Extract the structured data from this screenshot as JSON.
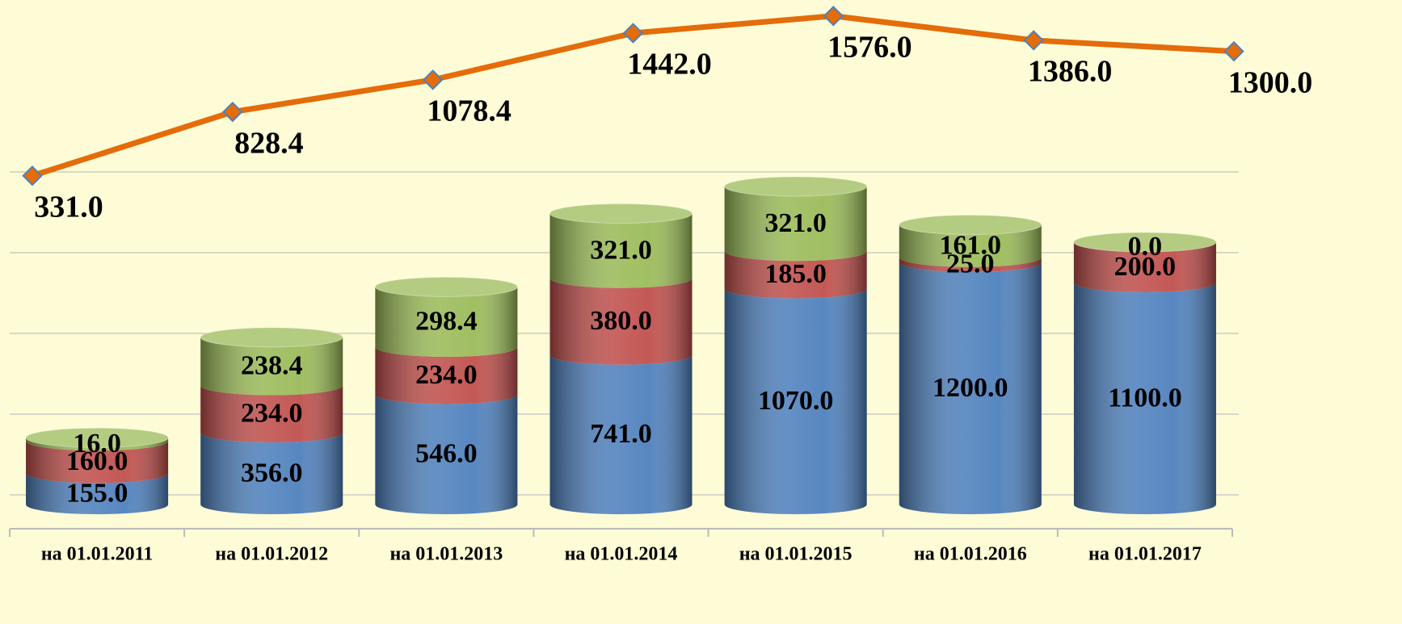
{
  "chart_data": {
    "type": "bar",
    "stacked": true,
    "categories": [
      "на 01.01.2011",
      "на 01.01.2012",
      "на 01.01.2013",
      "на 01.01.2014",
      "на 01.01.2015",
      "на 01.01.2016",
      "на 01.01.2017"
    ],
    "series": [
      {
        "color": "#4f81bd",
        "values": [
          155,
          356,
          546,
          741,
          1070,
          1200,
          1100
        ],
        "value_labels": [
          "155.0",
          "356.0",
          "546.0",
          "741.0",
          "1070.0",
          "1200.0",
          "1100.0"
        ]
      },
      {
        "color": "#c0504d",
        "values": [
          160,
          234,
          234,
          380,
          185,
          25,
          200
        ],
        "value_labels": [
          "160.0",
          "234.0",
          "234.0",
          "380.0",
          "185.0",
          "25.0",
          "200.0"
        ]
      },
      {
        "color": "#9bbb59",
        "values": [
          16,
          238.4,
          298.4,
          321,
          321,
          161,
          0
        ],
        "value_labels": [
          "16.0",
          "238.4",
          "298.4",
          "321.0",
          "321.0",
          "161.0",
          "0.0"
        ]
      },
      {
        "type": "line",
        "axis": "y2",
        "color": "#e46c0a",
        "marker_color": "#e46c0a",
        "marker_edge": "#4f81bd",
        "values": [
          331,
          828.4,
          1078.4,
          1442,
          1576,
          1386,
          1300
        ],
        "value_labels": [
          "331.0",
          "828.4",
          "1078.4",
          "1442.0",
          "1576.0",
          "1386.0",
          "1300.0"
        ]
      }
    ],
    "ylim": [
      0,
      2500
    ],
    "yticks": [
      0,
      400,
      800,
      1200,
      1600
    ],
    "y2lim": [
      -2230,
      1700
    ],
    "grid": true,
    "background": "#fefcd6"
  }
}
